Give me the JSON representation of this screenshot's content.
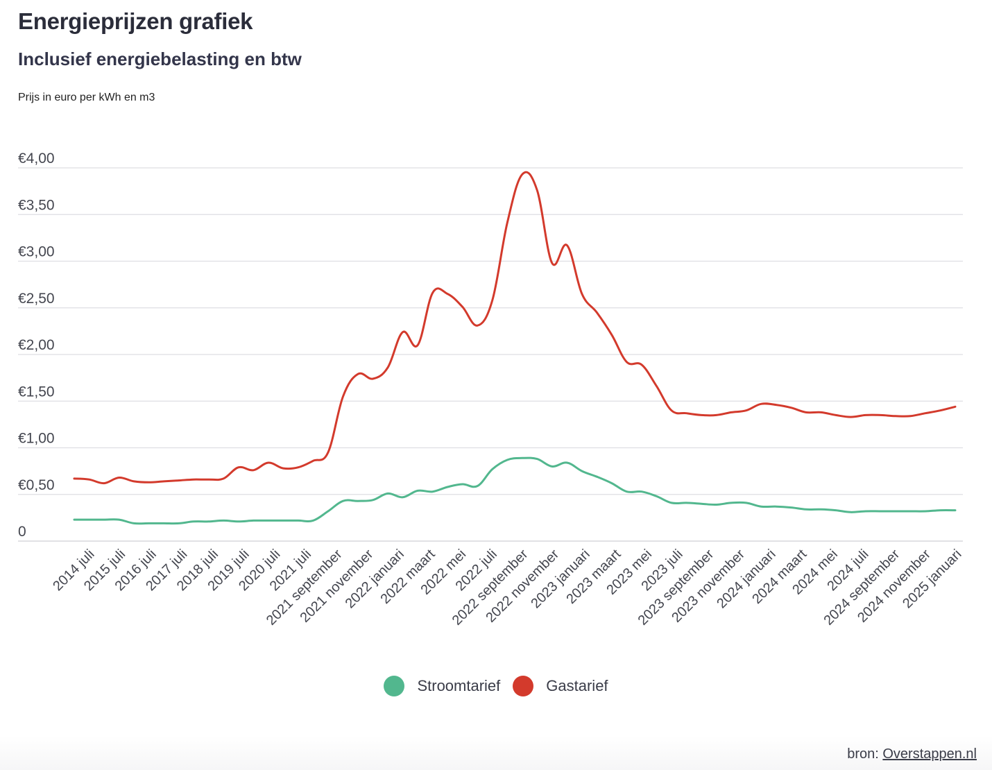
{
  "chart_data": {
    "type": "line",
    "title": "Energieprijzen grafiek",
    "subtitle": "Inclusief energiebelasting en btw",
    "ylabel": "Prijs in euro per kWh en m3",
    "ylim": [
      0,
      4
    ],
    "yticks": [
      {
        "value": 0,
        "label": "0"
      },
      {
        "value": 0.5,
        "label": "€0,50"
      },
      {
        "value": 1.0,
        "label": "€1,00"
      },
      {
        "value": 1.5,
        "label": "€1,50"
      },
      {
        "value": 2.0,
        "label": "€2,00"
      },
      {
        "value": 2.5,
        "label": "€2,50"
      },
      {
        "value": 3.0,
        "label": "€3,00"
      },
      {
        "value": 3.5,
        "label": "€3,50"
      },
      {
        "value": 4.0,
        "label": "€4,00"
      }
    ],
    "grid": true,
    "legend_position": "bottom",
    "x_tick_labels": [
      "2014 juli",
      "2015 juli",
      "2016 juli",
      "2017 juli",
      "2018 juli",
      "2019 juli",
      "2020 juli",
      "2021 juli",
      "2021 september",
      "2021 november",
      "2022 januari",
      "2022 maart",
      "2022 mei",
      "2022 juli",
      "2022 september",
      "2022 november",
      "2023 januari",
      "2023 maart",
      "2023 mei",
      "2023 juli",
      "2023 september",
      "2023 november",
      "2024 januari",
      "2024 maart",
      "2024 mei",
      "2024 juli",
      "2024 september",
      "2024 november",
      "2025 januari"
    ],
    "series": [
      {
        "name": "Stroomtarief",
        "color": "#52b78e",
        "values": [
          0.23,
          0.23,
          0.23,
          0.23,
          0.19,
          0.19,
          0.19,
          0.19,
          0.21,
          0.21,
          0.22,
          0.21,
          0.22,
          0.22,
          0.22,
          0.22,
          0.22,
          0.32,
          0.43,
          0.43,
          0.44,
          0.51,
          0.47,
          0.54,
          0.53,
          0.58,
          0.61,
          0.59,
          0.77,
          0.87,
          0.89,
          0.88,
          0.8,
          0.84,
          0.75,
          0.69,
          0.62,
          0.53,
          0.53,
          0.48,
          0.41,
          0.41,
          0.4,
          0.39,
          0.41,
          0.41,
          0.37,
          0.37,
          0.36,
          0.34,
          0.34,
          0.33,
          0.31,
          0.32,
          0.32,
          0.32,
          0.32,
          0.32,
          0.33,
          0.33
        ]
      },
      {
        "name": "Gastarief",
        "color": "#d33a2c",
        "values": [
          0.67,
          0.66,
          0.62,
          0.68,
          0.64,
          0.63,
          0.64,
          0.65,
          0.66,
          0.66,
          0.67,
          0.79,
          0.76,
          0.84,
          0.78,
          0.79,
          0.86,
          0.95,
          1.55,
          1.79,
          1.74,
          1.86,
          2.24,
          2.1,
          2.66,
          2.65,
          2.51,
          2.31,
          2.58,
          3.41,
          3.93,
          3.76,
          2.98,
          3.17,
          2.65,
          2.45,
          2.21,
          1.92,
          1.89,
          1.66,
          1.4,
          1.37,
          1.35,
          1.35,
          1.38,
          1.4,
          1.47,
          1.46,
          1.43,
          1.38,
          1.38,
          1.35,
          1.33,
          1.35,
          1.35,
          1.34,
          1.34,
          1.37,
          1.4,
          1.44
        ]
      }
    ]
  },
  "source": {
    "prefix": "bron:",
    "link_text": "Overstappen.nl"
  }
}
